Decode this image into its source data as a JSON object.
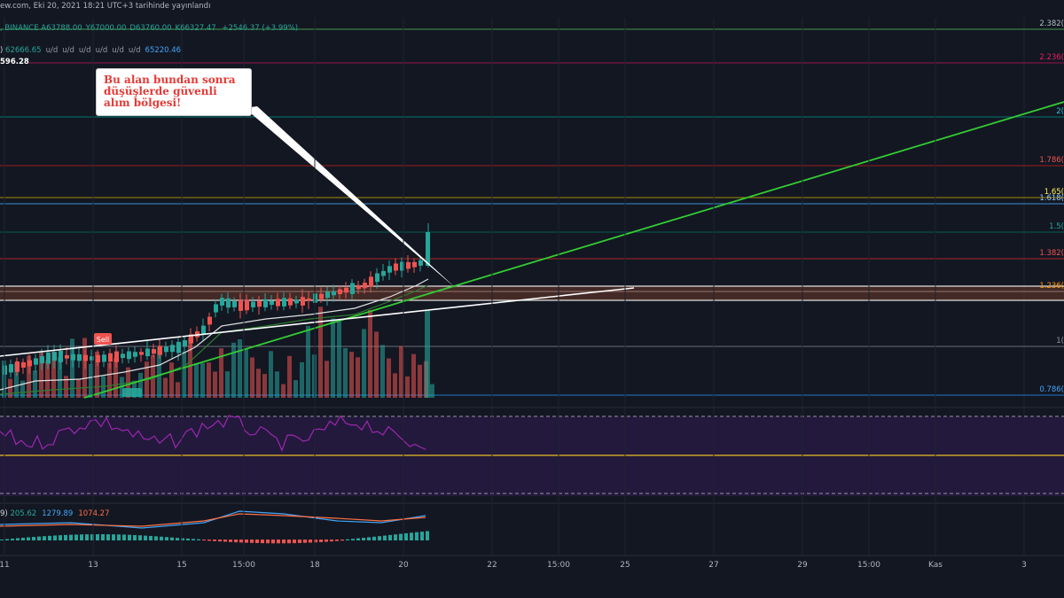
{
  "header": {
    "published_line": "ew.com, Eki 20, 2021 18:21 UTC+3 tarihinde yayınlandı",
    "symbol_exchange": ", BINANCE",
    "ohlc": [
      {
        "label": "A",
        "value": "63788.00"
      },
      {
        "label": "Y",
        "value": "67000.00"
      },
      {
        "label": "D",
        "value": "63760.00"
      },
      {
        "label": "K",
        "value": "66327.47"
      }
    ],
    "change": "+2546.37 (+3.99%)",
    "ma_line": {
      "prefix": ")",
      "values": [
        "62666.65",
        "u/d",
        "u/d",
        "u/d",
        "u/d",
        "u/d",
        "u/d",
        "65220.46"
      ],
      "colors": [
        "#26a69a",
        "#9598a1",
        "#9598a1",
        "#9598a1",
        "#9598a1",
        "#9598a1",
        "#9598a1",
        "#42a5f5"
      ]
    },
    "volume_value": "596.28"
  },
  "annotation": {
    "lines": [
      "Bu alan bundan sonra",
      "düşüşlerde güvenli",
      "alım bölgesi!"
    ]
  },
  "fib_levels": [
    {
      "label": "2.382(",
      "color": "#b0bec5",
      "line": "#4caf50"
    },
    {
      "label": "2.236(",
      "color": "#e91e63",
      "line": "#ad1457"
    },
    {
      "label": "2(",
      "color": "#26c6da",
      "line": "#00897b"
    },
    {
      "label": "1.786(",
      "color": "#ef5350",
      "line": "#b71c1c"
    },
    {
      "label": "1.65(",
      "color": "#ffee58",
      "line": "#c0a000"
    },
    {
      "label": "1.618(",
      "color": "#90caf9",
      "line": "#42a5f5"
    },
    {
      "label": "1.5(",
      "color": "#26a69a",
      "line": "#00695c"
    },
    {
      "label": "1.382(",
      "color": "#ef5350",
      "line": "#c62828"
    },
    {
      "label": "1.236(",
      "color": "#ff9800",
      "line": "#e0e0e0"
    },
    {
      "label": "1(",
      "color": "#9598a1",
      "line": "#787b86"
    },
    {
      "label": "0.786(",
      "color": "#42a5f5",
      "line": "#1e88e5"
    }
  ],
  "signal": {
    "label": "Sell"
  },
  "macd": {
    "prefix": "9)",
    "values": [
      "205.62",
      "1279.89",
      "1074.27"
    ],
    "colors": [
      "#26a69a",
      "#42a5f5",
      "#ff7043"
    ]
  },
  "time_axis": [
    "11",
    "13",
    "15",
    "15:00",
    "18",
    "20",
    "22",
    "15:00",
    "25",
    "27",
    "29",
    "15:00",
    "Kas",
    "3"
  ],
  "chart_data": {
    "type": "candlestick",
    "title": "",
    "categories": [
      "11",
      "13",
      "15",
      "15:00",
      "18",
      "20",
      "22",
      "15:00",
      "25",
      "27",
      "29",
      "15:00",
      "Kas",
      "3"
    ],
    "ohlc_last": {
      "open": 63788.0,
      "high": 67000.0,
      "low": 63760.0,
      "close": 66327.47
    },
    "change": 2546.37,
    "change_pct": 3.99,
    "ma_values": [
      62666.65,
      65220.46
    ],
    "volume": 596.28,
    "fib_levels": [
      2.382,
      2.236,
      2,
      1.786,
      1.65,
      1.618,
      1.5,
      1.382,
      1.236,
      1,
      0.786
    ],
    "macd": [
      205.62,
      1279.89,
      1074.27
    ],
    "colors": {
      "up": "#26a69a",
      "down": "#ef5350",
      "trend": "#33cc33",
      "rsi": "#9c27b0",
      "rsi_mid": "#c9a227"
    }
  }
}
